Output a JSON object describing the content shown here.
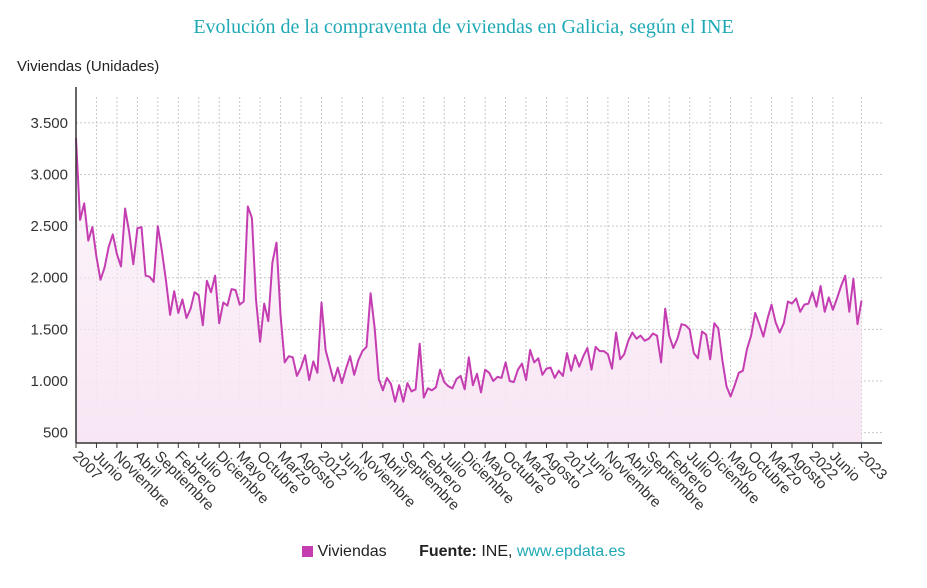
{
  "header": {
    "title": "Evolución de la compraventa de viviendas en Galicia, según el INE"
  },
  "legend": {
    "series_name": "Viviendas"
  },
  "source": {
    "label": "Fuente:",
    "name": "INE,",
    "link": "www.epdata.es"
  },
  "colors": {
    "title": "#1fa9b6",
    "series": "#c43eb2",
    "fill": "#f8e6f4",
    "grid": "#c8c8c8",
    "link": "#1fa9b6"
  },
  "chart_data": {
    "type": "area",
    "title": "Evolución de la compraventa de viviendas en Galicia, según el INE",
    "ylabel": "Viviendas (Unidades)",
    "xlabel": "",
    "ylim": [
      400,
      3750
    ],
    "yticks": [
      500,
      1000,
      1500,
      2000,
      2500,
      3000,
      3500
    ],
    "ytick_labels": [
      "500",
      "1.000",
      "1.500",
      "2.000",
      "2.500",
      "3.000",
      "3.500"
    ],
    "grid": true,
    "legend_position": "bottom",
    "x_start": "2007-01",
    "x_end": "2023-06",
    "xtick_labels": [
      {
        "date": "2007-01",
        "label": "2007"
      },
      {
        "date": "2007-06",
        "label": "Junio"
      },
      {
        "date": "2007-11",
        "label": "Noviembre"
      },
      {
        "date": "2008-04",
        "label": "Abril"
      },
      {
        "date": "2008-09",
        "label": "Septiembre"
      },
      {
        "date": "2009-02",
        "label": "Febrero"
      },
      {
        "date": "2009-07",
        "label": "Julio"
      },
      {
        "date": "2009-12",
        "label": "Diciembre"
      },
      {
        "date": "2010-05",
        "label": "Mayo"
      },
      {
        "date": "2010-10",
        "label": "Octubre"
      },
      {
        "date": "2011-03",
        "label": "Marzo"
      },
      {
        "date": "2011-08",
        "label": "Agosto"
      },
      {
        "date": "2012-01",
        "label": "2012"
      },
      {
        "date": "2012-06",
        "label": "Junio"
      },
      {
        "date": "2012-11",
        "label": "Noviembre"
      },
      {
        "date": "2013-04",
        "label": "Abril"
      },
      {
        "date": "2013-09",
        "label": "Septiembre"
      },
      {
        "date": "2014-02",
        "label": "Febrero"
      },
      {
        "date": "2014-07",
        "label": "Julio"
      },
      {
        "date": "2014-12",
        "label": "Diciembre"
      },
      {
        "date": "2015-05",
        "label": "Mayo"
      },
      {
        "date": "2015-10",
        "label": "Octubre"
      },
      {
        "date": "2016-03",
        "label": "Marzo"
      },
      {
        "date": "2016-08",
        "label": "Agosto"
      },
      {
        "date": "2017-01",
        "label": "2017"
      },
      {
        "date": "2017-06",
        "label": "Junio"
      },
      {
        "date": "2017-11",
        "label": "Noviembre"
      },
      {
        "date": "2018-04",
        "label": "Abril"
      },
      {
        "date": "2018-09",
        "label": "Septiembre"
      },
      {
        "date": "2019-02",
        "label": "Febrero"
      },
      {
        "date": "2019-07",
        "label": "Julio"
      },
      {
        "date": "2019-12",
        "label": "Diciembre"
      },
      {
        "date": "2020-05",
        "label": "Mayo"
      },
      {
        "date": "2020-10",
        "label": "Octubre"
      },
      {
        "date": "2021-03",
        "label": "Marzo"
      },
      {
        "date": "2021-08",
        "label": "Agosto"
      },
      {
        "date": "2022-01",
        "label": "2022"
      },
      {
        "date": "2022-06",
        "label": "Junio"
      },
      {
        "date": "2023-01",
        "label": "2023"
      }
    ],
    "series": [
      {
        "name": "Viviendas",
        "points": [
          [
            "2007-01",
            3350
          ],
          [
            "2007-02",
            2560
          ],
          [
            "2007-03",
            2720
          ],
          [
            "2007-04",
            2360
          ],
          [
            "2007-05",
            2490
          ],
          [
            "2007-06",
            2200
          ],
          [
            "2007-07",
            1980
          ],
          [
            "2007-08",
            2100
          ],
          [
            "2007-09",
            2300
          ],
          [
            "2007-10",
            2420
          ],
          [
            "2007-11",
            2230
          ],
          [
            "2007-12",
            2110
          ],
          [
            "2008-01",
            2670
          ],
          [
            "2008-02",
            2440
          ],
          [
            "2008-03",
            2130
          ],
          [
            "2008-04",
            2480
          ],
          [
            "2008-05",
            2490
          ],
          [
            "2008-06",
            2020
          ],
          [
            "2008-07",
            2010
          ],
          [
            "2008-08",
            1960
          ],
          [
            "2008-09",
            2500
          ],
          [
            "2008-10",
            2260
          ],
          [
            "2008-11",
            1970
          ],
          [
            "2008-12",
            1640
          ],
          [
            "2009-01",
            1870
          ],
          [
            "2009-02",
            1660
          ],
          [
            "2009-03",
            1790
          ],
          [
            "2009-04",
            1610
          ],
          [
            "2009-05",
            1700
          ],
          [
            "2009-06",
            1860
          ],
          [
            "2009-07",
            1830
          ],
          [
            "2009-08",
            1540
          ],
          [
            "2009-09",
            1970
          ],
          [
            "2009-10",
            1860
          ],
          [
            "2009-11",
            2020
          ],
          [
            "2009-12",
            1560
          ],
          [
            "2010-01",
            1760
          ],
          [
            "2010-02",
            1730
          ],
          [
            "2010-03",
            1890
          ],
          [
            "2010-04",
            1880
          ],
          [
            "2010-05",
            1740
          ],
          [
            "2010-06",
            1770
          ],
          [
            "2010-07",
            2690
          ],
          [
            "2010-08",
            2580
          ],
          [
            "2010-09",
            1790
          ],
          [
            "2010-10",
            1380
          ],
          [
            "2010-11",
            1750
          ],
          [
            "2010-12",
            1580
          ],
          [
            "2011-01",
            2150
          ],
          [
            "2011-02",
            2340
          ],
          [
            "2011-03",
            1630
          ],
          [
            "2011-04",
            1180
          ],
          [
            "2011-05",
            1240
          ],
          [
            "2011-06",
            1230
          ],
          [
            "2011-07",
            1050
          ],
          [
            "2011-08",
            1130
          ],
          [
            "2011-09",
            1250
          ],
          [
            "2011-10",
            1010
          ],
          [
            "2011-11",
            1190
          ],
          [
            "2011-12",
            1080
          ],
          [
            "2012-01",
            1760
          ],
          [
            "2012-02",
            1300
          ],
          [
            "2012-03",
            1150
          ],
          [
            "2012-04",
            1000
          ],
          [
            "2012-05",
            1130
          ],
          [
            "2012-06",
            980
          ],
          [
            "2012-07",
            1120
          ],
          [
            "2012-08",
            1240
          ],
          [
            "2012-09",
            1060
          ],
          [
            "2012-10",
            1200
          ],
          [
            "2012-11",
            1290
          ],
          [
            "2012-12",
            1330
          ],
          [
            "2013-01",
            1850
          ],
          [
            "2013-02",
            1510
          ],
          [
            "2013-03",
            1020
          ],
          [
            "2013-04",
            910
          ],
          [
            "2013-05",
            1030
          ],
          [
            "2013-06",
            970
          ],
          [
            "2013-07",
            800
          ],
          [
            "2013-08",
            960
          ],
          [
            "2013-09",
            800
          ],
          [
            "2013-10",
            980
          ],
          [
            "2013-11",
            900
          ],
          [
            "2013-12",
            920
          ],
          [
            "2014-01",
            1360
          ],
          [
            "2014-02",
            840
          ],
          [
            "2014-03",
            930
          ],
          [
            "2014-04",
            910
          ],
          [
            "2014-05",
            940
          ],
          [
            "2014-06",
            1110
          ],
          [
            "2014-07",
            990
          ],
          [
            "2014-08",
            950
          ],
          [
            "2014-09",
            930
          ],
          [
            "2014-10",
            1020
          ],
          [
            "2014-11",
            1050
          ],
          [
            "2014-12",
            920
          ],
          [
            "2015-01",
            1230
          ],
          [
            "2015-02",
            960
          ],
          [
            "2015-03",
            1070
          ],
          [
            "2015-04",
            890
          ],
          [
            "2015-05",
            1110
          ],
          [
            "2015-06",
            1080
          ],
          [
            "2015-07",
            1000
          ],
          [
            "2015-08",
            1040
          ],
          [
            "2015-09",
            1030
          ],
          [
            "2015-10",
            1180
          ],
          [
            "2015-11",
            1000
          ],
          [
            "2015-12",
            990
          ],
          [
            "2016-01",
            1110
          ],
          [
            "2016-02",
            1170
          ],
          [
            "2016-03",
            1010
          ],
          [
            "2016-04",
            1300
          ],
          [
            "2016-05",
            1180
          ],
          [
            "2016-06",
            1220
          ],
          [
            "2016-07",
            1060
          ],
          [
            "2016-08",
            1120
          ],
          [
            "2016-09",
            1130
          ],
          [
            "2016-10",
            1030
          ],
          [
            "2016-11",
            1100
          ],
          [
            "2016-12",
            1050
          ],
          [
            "2017-01",
            1270
          ],
          [
            "2017-02",
            1100
          ],
          [
            "2017-03",
            1250
          ],
          [
            "2017-04",
            1140
          ],
          [
            "2017-05",
            1240
          ],
          [
            "2017-06",
            1320
          ],
          [
            "2017-07",
            1110
          ],
          [
            "2017-08",
            1330
          ],
          [
            "2017-09",
            1290
          ],
          [
            "2017-10",
            1290
          ],
          [
            "2017-11",
            1260
          ],
          [
            "2017-12",
            1120
          ],
          [
            "2018-01",
            1470
          ],
          [
            "2018-02",
            1210
          ],
          [
            "2018-03",
            1260
          ],
          [
            "2018-04",
            1390
          ],
          [
            "2018-05",
            1470
          ],
          [
            "2018-06",
            1410
          ],
          [
            "2018-07",
            1440
          ],
          [
            "2018-08",
            1390
          ],
          [
            "2018-09",
            1410
          ],
          [
            "2018-10",
            1460
          ],
          [
            "2018-11",
            1440
          ],
          [
            "2018-12",
            1180
          ],
          [
            "2019-01",
            1700
          ],
          [
            "2019-02",
            1440
          ],
          [
            "2019-03",
            1320
          ],
          [
            "2019-04",
            1410
          ],
          [
            "2019-05",
            1550
          ],
          [
            "2019-06",
            1540
          ],
          [
            "2019-07",
            1500
          ],
          [
            "2019-08",
            1270
          ],
          [
            "2019-09",
            1220
          ],
          [
            "2019-10",
            1480
          ],
          [
            "2019-11",
            1450
          ],
          [
            "2019-12",
            1210
          ],
          [
            "2020-01",
            1560
          ],
          [
            "2020-02",
            1510
          ],
          [
            "2020-03",
            1200
          ],
          [
            "2020-04",
            950
          ],
          [
            "2020-05",
            850
          ],
          [
            "2020-06",
            960
          ],
          [
            "2020-07",
            1080
          ],
          [
            "2020-08",
            1100
          ],
          [
            "2020-09",
            1310
          ],
          [
            "2020-10",
            1440
          ],
          [
            "2020-11",
            1660
          ],
          [
            "2020-12",
            1550
          ],
          [
            "2021-01",
            1430
          ],
          [
            "2021-02",
            1600
          ],
          [
            "2021-03",
            1740
          ],
          [
            "2021-04",
            1570
          ],
          [
            "2021-05",
            1470
          ],
          [
            "2021-06",
            1560
          ],
          [
            "2021-07",
            1770
          ],
          [
            "2021-08",
            1750
          ],
          [
            "2021-09",
            1800
          ],
          [
            "2021-10",
            1670
          ],
          [
            "2021-11",
            1740
          ],
          [
            "2021-12",
            1750
          ],
          [
            "2022-01",
            1860
          ],
          [
            "2022-02",
            1720
          ],
          [
            "2022-03",
            1920
          ],
          [
            "2022-04",
            1670
          ],
          [
            "2022-05",
            1810
          ],
          [
            "2022-06",
            1690
          ],
          [
            "2022-07",
            1800
          ],
          [
            "2022-08",
            1920
          ],
          [
            "2022-09",
            2020
          ],
          [
            "2022-10",
            1670
          ],
          [
            "2022-11",
            1990
          ],
          [
            "2022-12",
            1550
          ],
          [
            "2023-01",
            1780
          ]
        ]
      }
    ]
  }
}
